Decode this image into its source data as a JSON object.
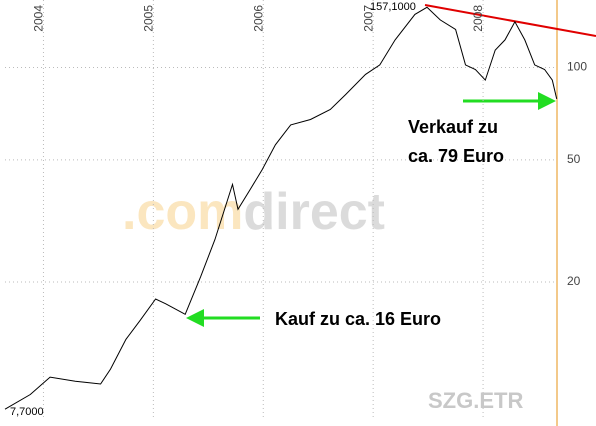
{
  "chart_data": {
    "type": "line",
    "x": [
      2003.65,
      2003.88,
      2004.06,
      2004.29,
      2004.52,
      2004.61,
      2004.75,
      2004.88,
      2005.02,
      2005.11,
      2005.29,
      2005.43,
      2005.56,
      2005.72,
      2005.77,
      2005.88,
      2005.99,
      2006.11,
      2006.25,
      2006.43,
      2006.61,
      2006.75,
      2006.93,
      2007.06,
      2007.2,
      2007.38,
      2007.49,
      2007.61,
      2007.75,
      2007.84,
      2007.93,
      2008.02,
      2008.11,
      2008.2,
      2008.29,
      2008.38,
      2008.47,
      2008.56,
      2008.63,
      2008.67
    ],
    "values": [
      7.7,
      8.6,
      9.8,
      9.5,
      9.3,
      10.4,
      13,
      15,
      17.6,
      17,
      15.7,
      20.8,
      27.5,
      41.6,
      34.5,
      40,
      46.5,
      56,
      65,
      67.7,
      73,
      81.7,
      95,
      102,
      123,
      149,
      157.1,
      143,
      133,
      102,
      98.5,
      91,
      114,
      123,
      141,
      123,
      102,
      98.5,
      91,
      79
    ],
    "color": "#000000",
    "xlim": [
      2003.65,
      2008.7
    ],
    "xticks": [
      2004,
      2005,
      2006,
      2007,
      2008
    ],
    "ylim": [
      7.1,
      166
    ],
    "yticks": [
      20,
      50,
      100
    ],
    "ylog": true,
    "grid": true,
    "annotations": [
      "157,1000",
      "7,7000",
      "Verkauf zu",
      "ca. 79 Euro",
      "Kauf zu ca. 16 Euro",
      "SZG.ETR"
    ],
    "watermark": [
      ".com",
      "direct"
    ]
  }
}
